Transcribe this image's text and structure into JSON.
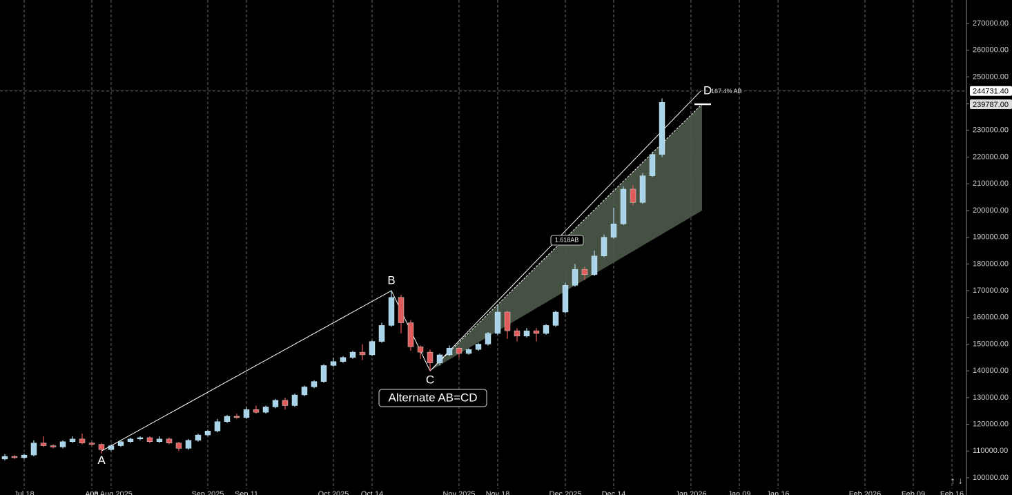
{
  "chart_data": {
    "type": "candlestick",
    "categories": [
      null,
      null,
      "Jul 18",
      null,
      null,
      null,
      null,
      null,
      null,
      "Aug",
      null,
      "08 Aug 2025",
      null,
      null,
      null,
      null,
      null,
      null,
      null,
      null,
      null,
      "Sep 2025",
      null,
      null,
      null,
      "Sep 11",
      null,
      null,
      null,
      null,
      null,
      null,
      null,
      null,
      "Oct 2025",
      null,
      null,
      null,
      "Oct 14",
      null,
      null,
      null,
      null,
      null,
      null,
      null,
      null,
      "Nov 2025",
      null,
      null,
      null,
      "Nov 18",
      null,
      null,
      null,
      null,
      null,
      null,
      "Dec 2025",
      null,
      null,
      null,
      null,
      "Dec 14",
      null,
      null,
      null,
      null,
      null,
      null,
      null,
      "Jan 2026",
      null,
      null,
      null,
      null,
      "Jan 09",
      null,
      null,
      null,
      "Jan 16",
      null,
      null,
      null,
      null,
      null,
      null,
      null,
      null,
      "Feb 2026",
      null,
      null,
      null,
      null,
      "Feb 09",
      null,
      null,
      null,
      "Feb 16",
      null
    ],
    "series": [
      {
        "name": "open",
        "values": [
          107000,
          108000,
          107500,
          108500,
          113000,
          112000,
          111500,
          113500,
          114500,
          113000,
          112500,
          110500,
          112000,
          113500,
          114500,
          115000,
          113500,
          114500,
          113000,
          111000,
          114000,
          116000,
          117500,
          121000,
          123000,
          122500,
          125500,
          124500,
          126500,
          129000,
          127000,
          131000,
          134000,
          136000,
          142000,
          143500,
          145000,
          147000,
          146000,
          151000,
          157000,
          167500,
          158000,
          149000,
          147000,
          143000,
          146000,
          148500,
          146500,
          148000,
          150000,
          154000,
          162000,
          155000,
          153000,
          155000,
          154000,
          157000,
          162000,
          172000,
          178000,
          176000,
          183000,
          190000,
          195000,
          208000,
          203000,
          213000,
          221000,
          null,
          null,
          null,
          null,
          null,
          null,
          null,
          null,
          null,
          null,
          null,
          null,
          null,
          null,
          null,
          null,
          null,
          null,
          null,
          null,
          null,
          null,
          null,
          null,
          null,
          null,
          null,
          null,
          null,
          null,
          null
        ]
      },
      {
        "name": "high",
        "values": [
          108800,
          108500,
          109000,
          114000,
          115500,
          112500,
          114000,
          115500,
          116500,
          113500,
          113000,
          112500,
          114000,
          115000,
          115500,
          115500,
          115500,
          115000,
          113500,
          114500,
          116500,
          118000,
          122000,
          123500,
          124000,
          126500,
          127000,
          127000,
          129500,
          130000,
          131500,
          134500,
          136500,
          142500,
          145000,
          145500,
          147500,
          150000,
          151500,
          158000,
          170000,
          168500,
          159000,
          149500,
          148000,
          146500,
          149500,
          149000,
          148500,
          150500,
          154500,
          164500,
          162500,
          156000,
          156000,
          156000,
          157500,
          162500,
          173000,
          180000,
          179000,
          185000,
          191000,
          201000,
          209000,
          209500,
          214000,
          222000,
          242000,
          null,
          null,
          null,
          null,
          null,
          null,
          null,
          null,
          null,
          null,
          null,
          null,
          null,
          null,
          null,
          null,
          null,
          null,
          null,
          null,
          null,
          null,
          null,
          null,
          null,
          null,
          null,
          null,
          null,
          null,
          null
        ]
      },
      {
        "name": "low",
        "values": [
          106500,
          107000,
          107000,
          108000,
          111500,
          111000,
          111000,
          113000,
          112500,
          112000,
          109000,
          110000,
          111500,
          113000,
          114000,
          113000,
          113000,
          112500,
          110000,
          110500,
          113500,
          115500,
          117000,
          120500,
          122000,
          122000,
          124000,
          124000,
          126000,
          125500,
          126500,
          130500,
          133500,
          135500,
          141500,
          143000,
          144500,
          144000,
          145500,
          150500,
          156500,
          154000,
          147500,
          144500,
          140000,
          142000,
          145500,
          145000,
          146000,
          147500,
          149500,
          153500,
          152000,
          151000,
          152500,
          151000,
          153500,
          156500,
          161500,
          171500,
          174000,
          175500,
          182500,
          189500,
          194500,
          202000,
          202500,
          212500,
          220000,
          null,
          null,
          null,
          null,
          null,
          null,
          null,
          null,
          null,
          null,
          null,
          null,
          null,
          null,
          null,
          null,
          null,
          null,
          null,
          null,
          null,
          null,
          null,
          null,
          null,
          null,
          null,
          null,
          null,
          null,
          null
        ]
      },
      {
        "name": "close",
        "values": [
          108000,
          107500,
          108500,
          113000,
          112000,
          111500,
          113500,
          114500,
          113000,
          112500,
          110500,
          112000,
          113500,
          114500,
          115000,
          113500,
          114500,
          113000,
          111000,
          114000,
          116000,
          117500,
          121000,
          123000,
          122500,
          125500,
          124500,
          126500,
          129000,
          127000,
          131000,
          134000,
          136000,
          142000,
          143500,
          145000,
          147000,
          146000,
          151000,
          157000,
          167500,
          158000,
          149000,
          147000,
          143000,
          146000,
          148500,
          146500,
          148000,
          150000,
          154000,
          162000,
          155000,
          153000,
          155000,
          154000,
          157000,
          162000,
          172000,
          178000,
          176000,
          183000,
          190000,
          195000,
          208000,
          203000,
          213000,
          221000,
          240500,
          null,
          null,
          null,
          null,
          null,
          null,
          null,
          null,
          null,
          null,
          null,
          null,
          null,
          null,
          null,
          null,
          null,
          null,
          null,
          null,
          null,
          null,
          null,
          null,
          null,
          null,
          null,
          null,
          null,
          null,
          null
        ]
      }
    ],
    "up_color": "#a9d3ea",
    "down_color": "#e25a5a",
    "ylim": [
      93541,
      278784
    ],
    "yticks": [
      {
        "value": 100000,
        "label": "100000.00"
      },
      {
        "value": 110000,
        "label": "110000.00"
      },
      {
        "value": 120000,
        "label": "120000.00"
      },
      {
        "value": 130000,
        "label": "130000.00"
      },
      {
        "value": 140000,
        "label": "140000.00"
      },
      {
        "value": 150000,
        "label": "150000.00"
      },
      {
        "value": 160000,
        "label": "160000.00"
      },
      {
        "value": 170000,
        "label": "170000.00"
      },
      {
        "value": 180000,
        "label": "180000.00"
      },
      {
        "value": 190000,
        "label": "190000.00"
      },
      {
        "value": 200000,
        "label": "200000.00"
      },
      {
        "value": 210000,
        "label": "210000.00"
      },
      {
        "value": 220000,
        "label": "220000.00"
      },
      {
        "value": 230000,
        "label": "230000.00"
      },
      {
        "value": 240000,
        "label": "240000.00"
      },
      {
        "value": 250000,
        "label": "250000.00"
      },
      {
        "value": 260000,
        "label": "260000.00"
      },
      {
        "value": 270000,
        "label": "270000.00"
      }
    ],
    "grid": true,
    "price_tags": [
      {
        "value": 244731.4,
        "label": "244731.40"
      },
      {
        "value": 239787,
        "label": "239787.00"
      }
    ],
    "pattern": {
      "points": [
        {
          "label": "A",
          "value": 110000
        },
        {
          "label": "B",
          "value": 170000
        },
        {
          "label": "C",
          "value": 140000
        },
        {
          "label": "D",
          "value": 244731.4
        }
      ],
      "projection_upper": 239787,
      "projection_lower": 200000,
      "ratio_label": "1.618AB",
      "d_label": "167.4% AB",
      "name": "Alternate AB=CD"
    }
  }
}
